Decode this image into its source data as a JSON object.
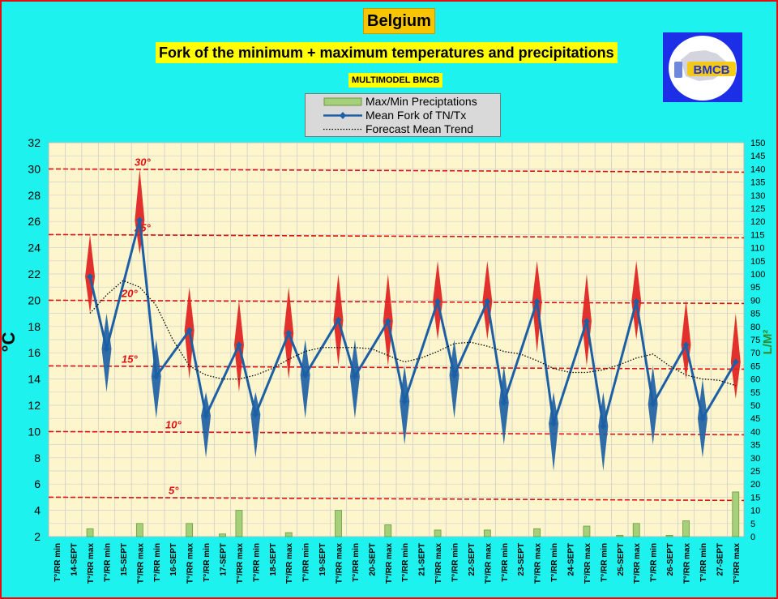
{
  "header": {
    "title": "Belgium",
    "subtitle": "Fork of the minimum + maximum temperatures and precipitations",
    "tag": "MULTIMODEL BMCB",
    "logo_text": "BMCB"
  },
  "legend": {
    "items": [
      {
        "label": "Max/Min Preciptations",
        "symbol": "bar"
      },
      {
        "label": "Mean Fork of TN/Tx",
        "symbol": "line-diamond"
      },
      {
        "label": "Forecast Mean Trend",
        "symbol": "dotted"
      }
    ]
  },
  "colors": {
    "background": "#1ef2ee",
    "plot_area": "#fdf6cc",
    "border": "#e01010",
    "mean_line": "#1d5fa5",
    "hot_diamond": "#e02020",
    "cold_diamond": "#1d5fa5",
    "precip_bar": "#a6cf7a",
    "ref_line": "#e01010",
    "right_axis": "#2e8b2e"
  },
  "chart_data": {
    "type": "line",
    "title": "Fork of the minimum + maximum temperatures and precipitations",
    "ylabel": "°C",
    "ylabel_right": "L/M²",
    "ylim": [
      2,
      32
    ],
    "yticks": [
      2,
      4,
      6,
      8,
      10,
      12,
      14,
      16,
      18,
      20,
      22,
      24,
      26,
      28,
      30,
      32
    ],
    "ylim_right": [
      0,
      150
    ],
    "yticks_right": [
      0,
      5,
      10,
      15,
      20,
      25,
      30,
      35,
      40,
      45,
      50,
      55,
      60,
      65,
      70,
      75,
      80,
      85,
      90,
      95,
      100,
      105,
      110,
      115,
      120,
      125,
      130,
      135,
      140,
      145,
      150
    ],
    "grid": true,
    "categories": [
      "T°/RR min",
      "14-SEPT",
      "T°/RR max",
      "T°/RR min",
      "15-SEPT",
      "T°/RR max",
      "T°/RR min",
      "16-SEPT",
      "T°/RR max",
      "T°/RR min",
      "17-SEPT",
      "T°/RR max",
      "T°/RR min",
      "18-SEPT",
      "T°/RR max",
      "T°/RR min",
      "19-SEPT",
      "T°/RR max",
      "T°/RR min",
      "20-SEPT",
      "T°/RR max",
      "T°/RR min",
      "21-SEPT",
      "T°/RR max",
      "T°/RR min",
      "22-SEPT",
      "T°/RR max",
      "T°/RR min",
      "23-SEPT",
      "T°/RR max",
      "T°/RR min",
      "24-SEPT",
      "T°/RR max",
      "T°/RR min",
      "25-SEPT",
      "T°/RR max",
      "T°/RR min",
      "26-SEPT",
      "T°/RR max",
      "T°/RR min",
      "27-SEPT",
      "T°/RR max"
    ],
    "series": [
      {
        "name": "Mean Fork of TN/Tx",
        "kind": "line-diamond",
        "values": [
          null,
          null,
          21.8,
          16.3,
          null,
          26.1,
          14.2,
          null,
          17.7,
          11.2,
          null,
          16.6,
          11.3,
          null,
          17.5,
          14.3,
          null,
          18.5,
          14.2,
          null,
          18.4,
          12.3,
          null,
          19.9,
          14.3,
          null,
          19.9,
          12.2,
          null,
          19.9,
          10.6,
          null,
          18.4,
          10.4,
          null,
          19.9,
          12.1,
          null,
          16.6,
          11.0,
          null,
          15.3
        ],
        "ranges": [
          null,
          null,
          [
            19.0,
            25.0
          ],
          [
            13.0,
            19.0
          ],
          null,
          [
            23.5,
            30.0
          ],
          [
            11.0,
            17.0
          ],
          null,
          [
            14.0,
            21.0
          ],
          [
            8.0,
            13.0
          ],
          null,
          [
            13.0,
            20.0
          ],
          [
            8.0,
            13.0
          ],
          null,
          [
            14.0,
            21.0
          ],
          [
            11.0,
            17.0
          ],
          null,
          [
            15.0,
            22.0
          ],
          [
            11.0,
            17.0
          ],
          null,
          [
            15.0,
            22.0
          ],
          [
            9.0,
            15.0
          ],
          null,
          [
            17.0,
            23.0
          ],
          [
            11.0,
            17.0
          ],
          null,
          [
            17.0,
            23.0
          ],
          [
            9.0,
            15.0
          ],
          null,
          [
            16.0,
            23.0
          ],
          [
            7.0,
            13.0
          ],
          null,
          [
            15.0,
            22.0
          ],
          [
            7.0,
            13.0
          ],
          null,
          [
            17.0,
            23.0
          ],
          [
            9.0,
            15.0
          ],
          null,
          [
            14.0,
            20.0
          ],
          [
            8.0,
            14.0
          ],
          null,
          [
            12.5,
            19.0
          ]
        ]
      },
      {
        "name": "Forecast Mean Trend",
        "kind": "dotted",
        "values": [
          null,
          null,
          19.0,
          20.4,
          21.5,
          21.0,
          19.6,
          17.0,
          15.0,
          14.3,
          14.0,
          14.0,
          14.3,
          14.8,
          15.5,
          16.1,
          16.4,
          16.4,
          16.4,
          16.3,
          15.8,
          15.3,
          15.6,
          16.1,
          16.7,
          16.8,
          16.5,
          16.1,
          15.9,
          15.4,
          14.8,
          14.5,
          14.5,
          14.7,
          15.1,
          15.6,
          15.9,
          15.0,
          14.3,
          14.0,
          13.9,
          13.5
        ]
      },
      {
        "name": "Max/Min Preciptations",
        "kind": "bar",
        "axis": "right",
        "values": [
          0,
          0,
          3,
          0,
          0,
          5,
          0,
          0,
          5,
          0,
          1,
          10,
          0,
          0,
          1.5,
          0,
          0,
          10,
          0,
          0,
          4.5,
          0,
          0,
          2.5,
          0,
          0,
          2.5,
          0,
          0,
          3,
          0,
          0,
          4,
          0,
          0.5,
          5,
          0,
          0.5,
          6,
          0,
          0,
          17
        ]
      }
    ],
    "reference_lines": [
      {
        "label": "30°",
        "value": 30
      },
      {
        "label": "25°",
        "value": 25
      },
      {
        "label": "20°",
        "value": 20
      },
      {
        "label": "15°",
        "value": 15
      },
      {
        "label": "10°",
        "value": 10
      },
      {
        "label": "5°",
        "value": 5
      }
    ]
  }
}
